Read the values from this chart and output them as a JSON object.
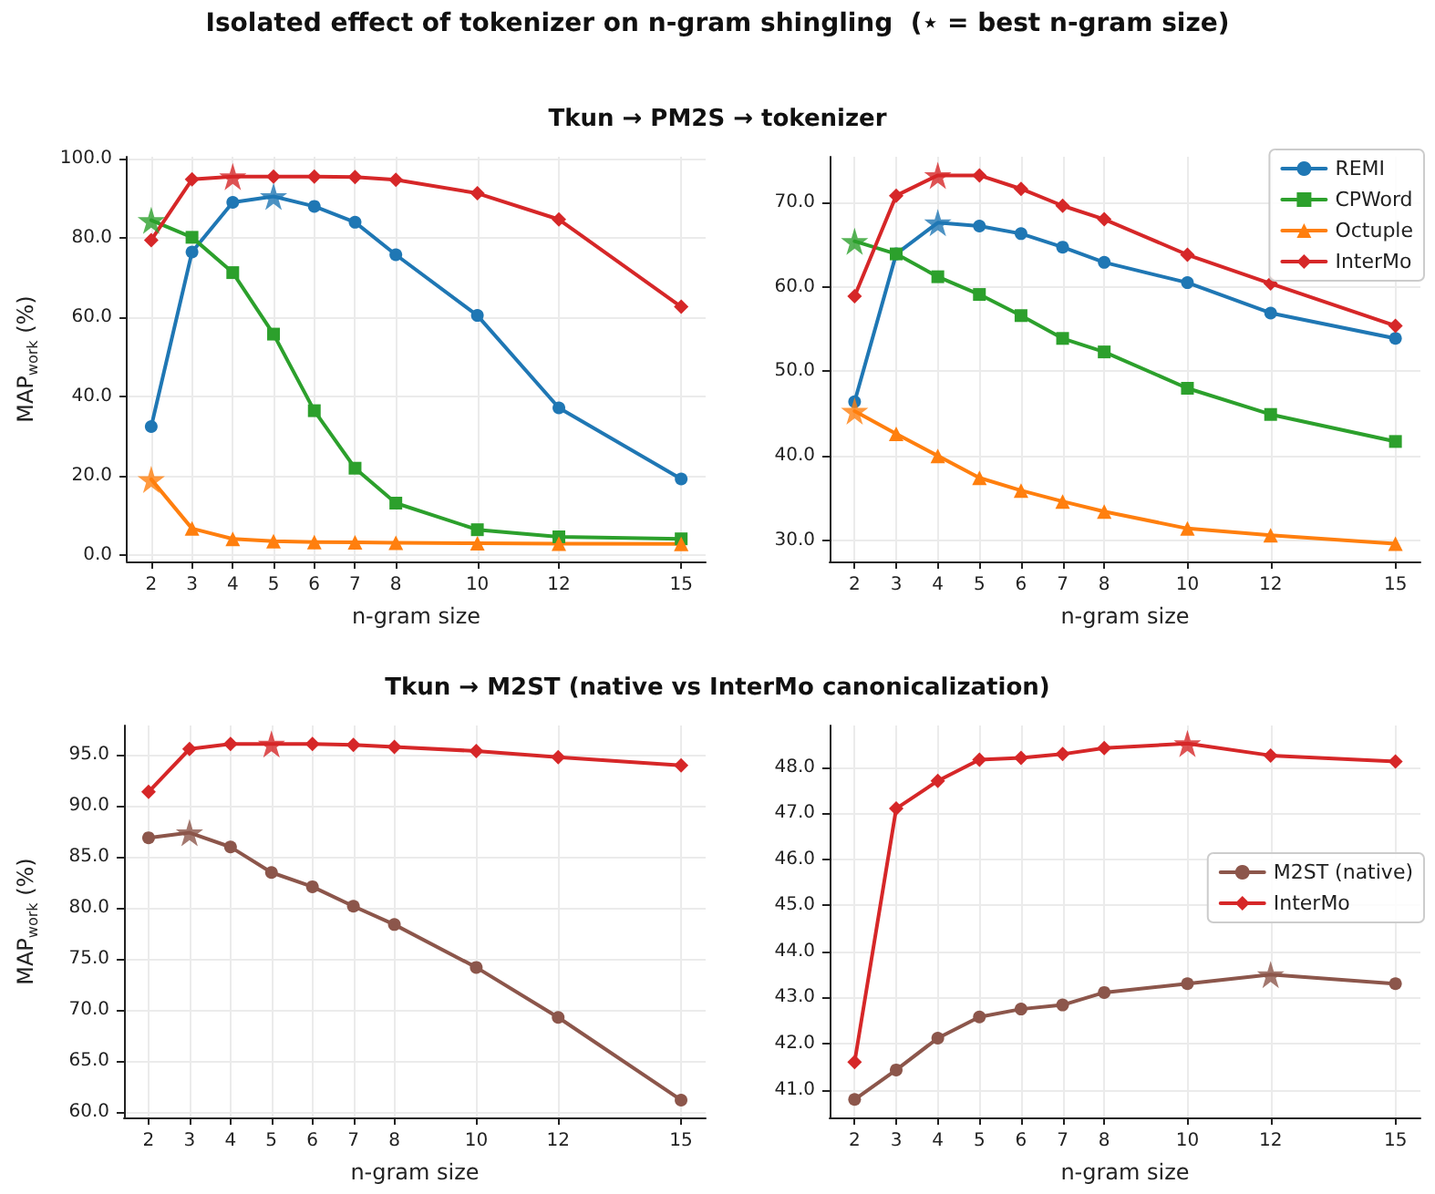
{
  "chart_data": [
    {
      "type": "line",
      "title": "Isolated effect of tokenizer on n-gram shingling  (⋆ = best n-gram size)",
      "subtitle": "Tkun → PM2S → tokenizer",
      "xlabel": "n-gram size",
      "ylabel": "MAP$_{work}$ (%)",
      "x": [
        2,
        3,
        4,
        5,
        6,
        7,
        8,
        10,
        12,
        15
      ],
      "xlim": [
        1.4,
        15.6
      ],
      "xticks": [
        2,
        3,
        4,
        5,
        6,
        7,
        8,
        10,
        12,
        15
      ],
      "ylim": [
        -1.5,
        100.5
      ],
      "yticks": [
        {
          "value": 0,
          "label": "0.0"
        },
        {
          "value": 20,
          "label": "20.0"
        },
        {
          "value": 40,
          "label": "40.0"
        },
        {
          "value": 60,
          "label": "60.0"
        },
        {
          "value": 80,
          "label": "80.0"
        },
        {
          "value": 100,
          "label": "100.0"
        }
      ],
      "grid": true,
      "legend": false,
      "series": [
        {
          "color": "#1f77b4",
          "marker": "circle",
          "values": [
            32.5,
            76.5,
            89,
            90.5,
            88,
            84,
            75.8,
            60.5,
            37.2,
            19.3
          ]
        },
        {
          "color": "#2ca02c",
          "marker": "square",
          "values": [
            84.5,
            80.2,
            71.3,
            55.8,
            36.5,
            22,
            13.2,
            6.5,
            4.7,
            4.2
          ]
        },
        {
          "color": "#ff7f0e",
          "marker": "triangle",
          "values": [
            19.2,
            6.8,
            4.2,
            3.6,
            3.4,
            3.3,
            3.2,
            3.1,
            3.0,
            2.9
          ]
        },
        {
          "color": "#d62728",
          "marker": "diamond",
          "values": [
            79.5,
            94.8,
            95.5,
            95.5,
            95.5,
            95.4,
            94.7,
            91.3,
            84.7,
            62.7
          ]
        },
        {
          "type": "scatter",
          "marker": "star",
          "x": [
            5,
            2,
            2,
            4
          ],
          "values": [
            90.5,
            84.5,
            19.2,
            95.5
          ],
          "colors": [
            "#1f77b4",
            "#2ca02c",
            "#ff7f0e",
            "#d62728"
          ]
        }
      ]
    },
    {
      "type": "line",
      "xlabel": "n-gram size",
      "x": [
        2,
        3,
        4,
        5,
        6,
        7,
        8,
        10,
        12,
        15
      ],
      "xlim": [
        1.4,
        15.6
      ],
      "xticks": [
        2,
        3,
        4,
        5,
        6,
        7,
        8,
        10,
        12,
        15
      ],
      "ylim": [
        27.5,
        75.4
      ],
      "yticks": [
        {
          "value": 30,
          "label": "30.0"
        },
        {
          "value": 40,
          "label": "40.0"
        },
        {
          "value": 50,
          "label": "50.0"
        },
        {
          "value": 60,
          "label": "60.0"
        },
        {
          "value": 70,
          "label": "70.0"
        }
      ],
      "grid": true,
      "legend": "top right",
      "series": [
        {
          "name": "REMI",
          "color": "#1f77b4",
          "marker": "circle",
          "values": [
            46.4,
            63.9,
            67.6,
            67.2,
            66.3,
            64.7,
            62.9,
            60.5,
            56.9,
            53.9
          ]
        },
        {
          "name": "CPWord",
          "color": "#2ca02c",
          "marker": "square",
          "values": [
            65.4,
            63.9,
            61.2,
            59.1,
            56.6,
            53.9,
            52.3,
            48.0,
            44.9,
            41.7
          ]
        },
        {
          "name": "Octuple",
          "color": "#ff7f0e",
          "marker": "triangle",
          "values": [
            45.3,
            42.6,
            40.0,
            37.4,
            35.9,
            34.6,
            33.4,
            31.4,
            30.6,
            29.6
          ]
        },
        {
          "name": "InterMo",
          "color": "#d62728",
          "marker": "diamond",
          "values": [
            58.9,
            70.8,
            73.2,
            73.2,
            71.6,
            69.6,
            68.0,
            63.8,
            60.4,
            55.4
          ]
        },
        {
          "type": "scatter",
          "marker": "star",
          "x": [
            4,
            2,
            2,
            4
          ],
          "values": [
            67.6,
            65.4,
            45.3,
            73.2
          ],
          "colors": [
            "#1f77b4",
            "#2ca02c",
            "#ff7f0e",
            "#d62728"
          ]
        }
      ]
    },
    {
      "type": "line",
      "subtitle": "Tkun → M2ST (native vs InterMo canonicalization)",
      "xlabel": "n-gram size",
      "ylabel": "MAP$_{work}$ (%)",
      "x": [
        2,
        3,
        4,
        5,
        6,
        7,
        8,
        10,
        12,
        15
      ],
      "xlim": [
        1.4,
        15.6
      ],
      "xticks": [
        2,
        3,
        4,
        5,
        6,
        7,
        8,
        10,
        12,
        15
      ],
      "ylim": [
        59.5,
        97.9
      ],
      "yticks": [
        {
          "value": 60,
          "label": "60.0"
        },
        {
          "value": 65,
          "label": "65.0"
        },
        {
          "value": 70,
          "label": "70.0"
        },
        {
          "value": 75,
          "label": "75.0"
        },
        {
          "value": 80,
          "label": "80.0"
        },
        {
          "value": 85,
          "label": "85.0"
        },
        {
          "value": 90,
          "label": "90.0"
        },
        {
          "value": 95,
          "label": "95.0"
        }
      ],
      "grid": true,
      "legend": false,
      "series": [
        {
          "color": "#8c564b",
          "marker": "circle",
          "values": [
            86.9,
            87.4,
            86.0,
            83.5,
            82.1,
            80.2,
            78.4,
            74.2,
            69.3,
            61.2
          ]
        },
        {
          "color": "#d62728",
          "marker": "diamond",
          "values": [
            91.4,
            95.6,
            96.1,
            96.1,
            96.1,
            96.0,
            95.8,
            95.4,
            94.8,
            94.0
          ]
        },
        {
          "type": "scatter",
          "marker": "star",
          "x": [
            3,
            5
          ],
          "values": [
            87.4,
            96.1
          ],
          "colors": [
            "#8c564b",
            "#d62728"
          ]
        }
      ]
    },
    {
      "type": "line",
      "xlabel": "n-gram size",
      "x": [
        2,
        3,
        4,
        5,
        6,
        7,
        8,
        10,
        12,
        15
      ],
      "xlim": [
        1.4,
        15.6
      ],
      "xticks": [
        2,
        3,
        4,
        5,
        6,
        7,
        8,
        10,
        12,
        15
      ],
      "ylim": [
        40.4,
        48.9
      ],
      "yticks": [
        {
          "value": 41,
          "label": "41.0"
        },
        {
          "value": 42,
          "label": "42.0"
        },
        {
          "value": 43,
          "label": "43.0"
        },
        {
          "value": 44,
          "label": "44.0"
        },
        {
          "value": 45,
          "label": "45.0"
        },
        {
          "value": 46,
          "label": "46.0"
        },
        {
          "value": 47,
          "label": "47.0"
        },
        {
          "value": 48,
          "label": "48.0"
        }
      ],
      "grid": true,
      "legend": "right",
      "series": [
        {
          "name": "M2ST (native)",
          "color": "#8c564b",
          "marker": "circle",
          "values": [
            40.79,
            41.43,
            42.12,
            42.58,
            42.75,
            42.84,
            43.11,
            43.3,
            43.5,
            43.3
          ]
        },
        {
          "name": "InterMo",
          "color": "#d62728",
          "marker": "diamond",
          "values": [
            41.6,
            47.1,
            47.7,
            48.16,
            48.2,
            48.28,
            48.41,
            48.51,
            48.25,
            48.12
          ]
        },
        {
          "type": "scatter",
          "marker": "star",
          "x": [
            10,
            12
          ],
          "values": [
            48.51,
            43.5
          ],
          "colors": [
            "#d62728",
            "#8c564b"
          ]
        }
      ]
    }
  ]
}
